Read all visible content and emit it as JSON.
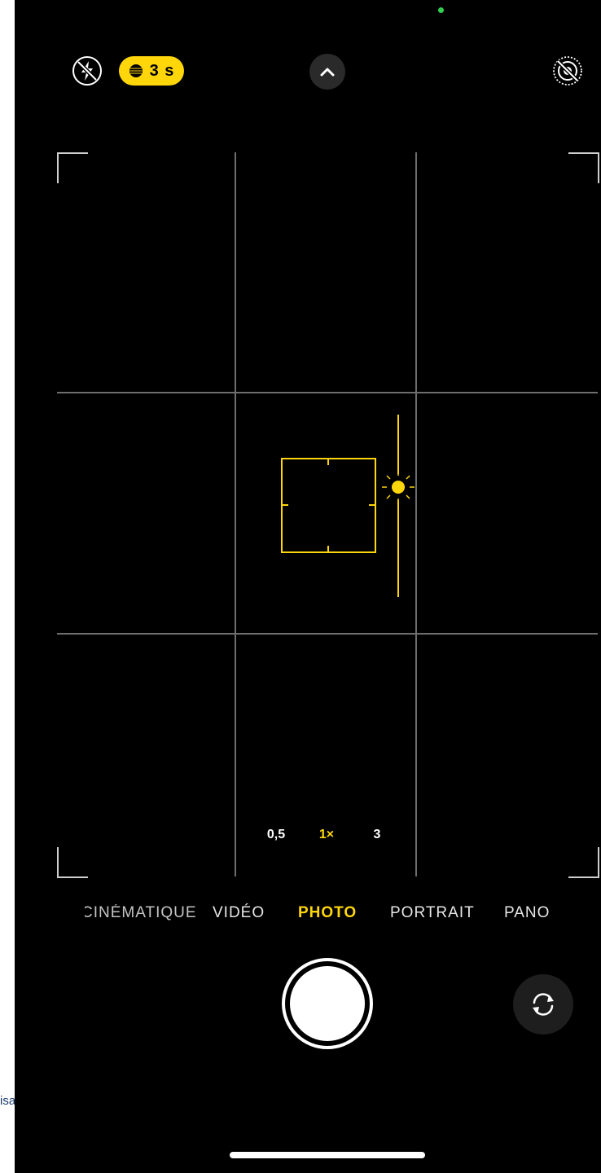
{
  "left_strip": {
    "text": "isa"
  },
  "top_bar": {
    "flash_icon": "flash-off-icon",
    "night_mode": {
      "icon": "night-mode-moon-icon",
      "label": "3 s",
      "color": "#ffd60a"
    },
    "more_controls_icon": "chevron-up-icon",
    "live_icon": "live-photo-off-icon"
  },
  "viewfinder": {
    "focus_box_color": "#ffd60a",
    "exposure_icon": "sun-icon"
  },
  "zoom": {
    "options": [
      {
        "label": "0,5",
        "active": false
      },
      {
        "label": "1×",
        "active": true
      },
      {
        "label": "3",
        "active": false
      }
    ]
  },
  "modes": {
    "items": [
      {
        "label": "CINÉMATIQUE",
        "active": false
      },
      {
        "label": "VIDÉO",
        "active": false
      },
      {
        "label": "PHOTO",
        "active": true
      },
      {
        "label": "PORTRAIT",
        "active": false
      },
      {
        "label": "PANO",
        "active": false
      }
    ]
  },
  "bottom_bar": {
    "shutter_icon": "shutter-button",
    "flip_icon": "camera-flip-icon"
  },
  "accent_color": "#ffd60a"
}
